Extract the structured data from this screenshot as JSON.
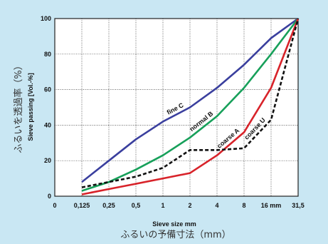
{
  "chart_data": {
    "type": "line",
    "x_axis": {
      "label_en": "Sieve size  mm",
      "label_ja": "ふるいの予備寸法（mm）",
      "tick_labels": [
        "0",
        "0,125",
        "0,25",
        "0,5",
        "1",
        "2",
        "4",
        "8",
        "16 mm",
        "31,5"
      ]
    },
    "y_axis": {
      "label_en": "Sieve passing [Vol.-%]",
      "label_ja": "ふるいを透過率（%）",
      "ylim": [
        0,
        100
      ],
      "ticks": [
        0,
        20,
        40,
        60,
        80,
        100
      ]
    },
    "grid": true,
    "series": [
      {
        "name": "fine C",
        "color": "#3a3f9e",
        "style": "solid",
        "values": [
          null,
          8,
          20,
          32,
          42,
          50,
          61,
          74,
          89,
          100
        ],
        "label_at": 5
      },
      {
        "name": "normal B",
        "color": "#17a05a",
        "style": "solid",
        "values": [
          null,
          3,
          8,
          15,
          23,
          33,
          45,
          61,
          80,
          100
        ],
        "label_at": 6
      },
      {
        "name": "coarse A",
        "color": "#d8232a",
        "style": "solid",
        "values": [
          null,
          1,
          4,
          7,
          10,
          13,
          23,
          36,
          61,
          100
        ],
        "label_at": 7
      },
      {
        "name": "coarse U",
        "color": "#111111",
        "style": "dashed",
        "values": [
          null,
          5,
          8,
          11,
          16,
          26,
          26,
          27,
          43,
          100
        ],
        "label_at": 8
      }
    ]
  }
}
